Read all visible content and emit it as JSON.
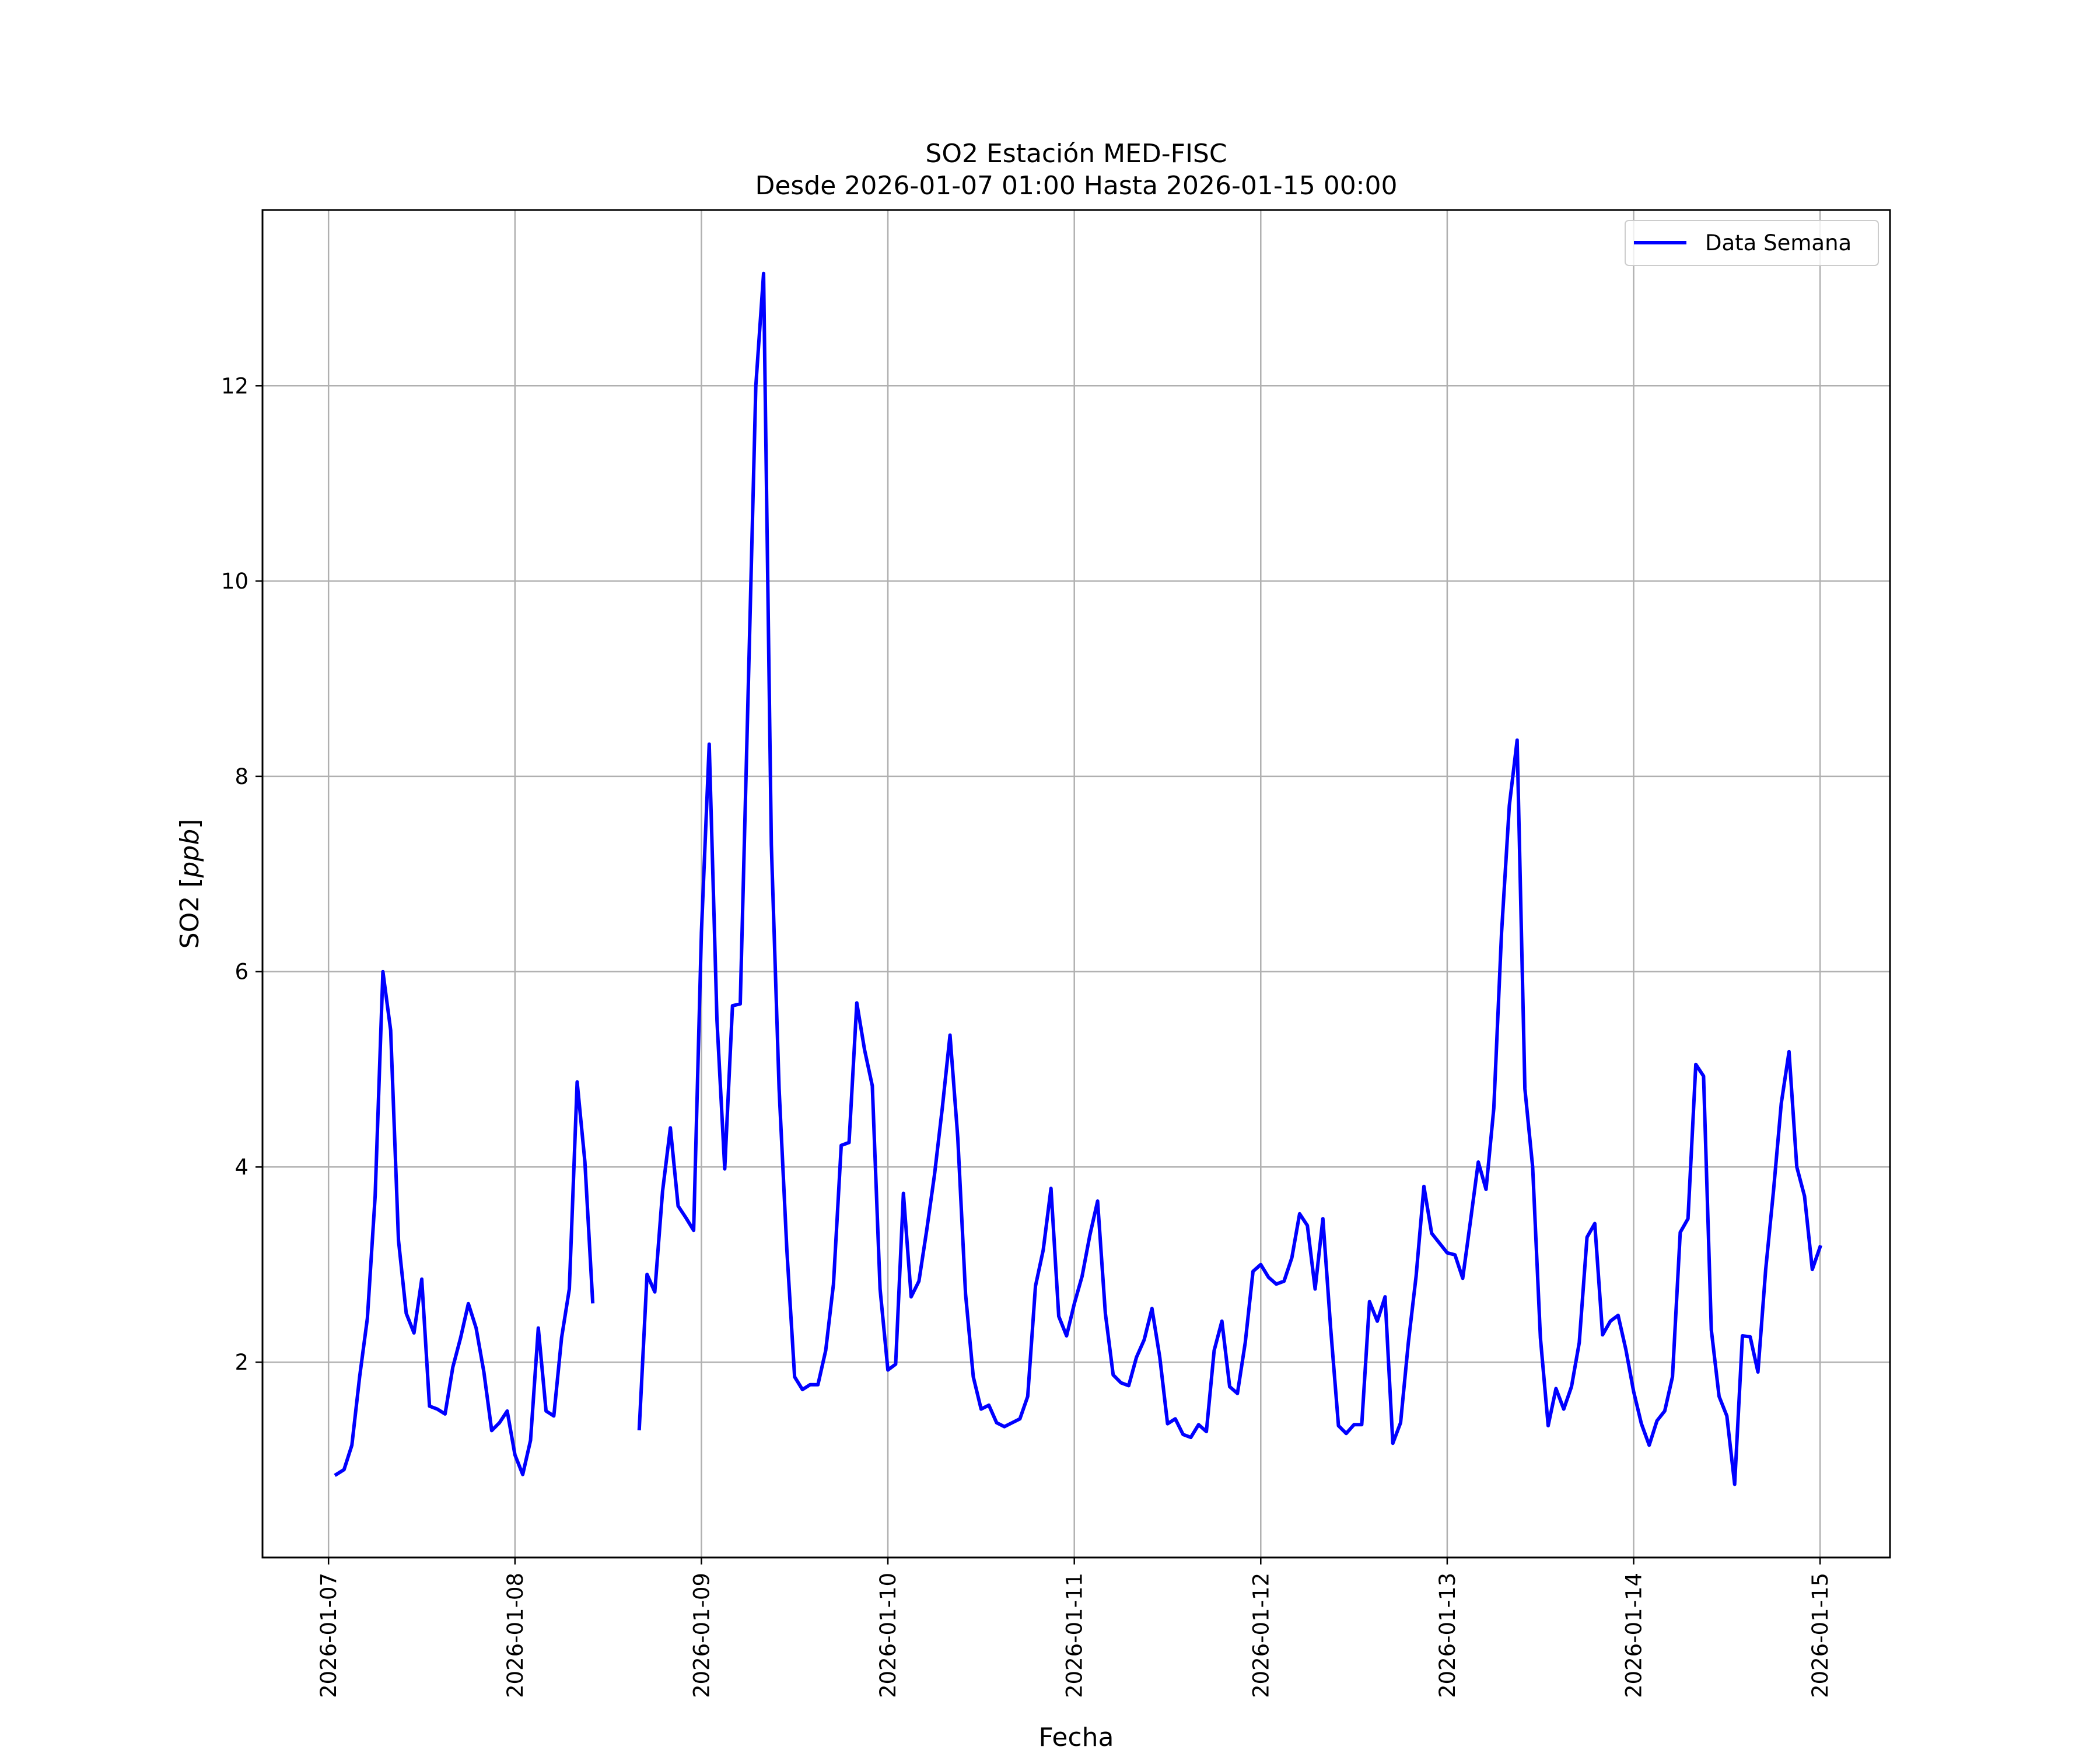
{
  "chart_data": {
    "type": "line",
    "title": "SO2 Estación MED-FISC",
    "subtitle": "Desde 2026-01-07 01:00 Hasta 2026-01-15 00:00",
    "xlabel": "Fecha",
    "ylabel": "SO2 [ppb]",
    "ylabel_main": "SO2 [",
    "ylabel_unit": "ppb",
    "ylabel_close": "]",
    "x_ticks": [
      "2026-01-07",
      "2026-01-08",
      "2026-01-09",
      "2026-01-10",
      "2026-01-11",
      "2026-01-12",
      "2026-01-13",
      "2026-01-14",
      "2026-01-15"
    ],
    "y_ticks": [
      "2",
      "4",
      "6",
      "8",
      "10",
      "12"
    ],
    "xlim": [
      "2026-01-06 15:30",
      "2026-01-15 09:00"
    ],
    "ylim": [
      0.0,
      13.8
    ],
    "grid": true,
    "legend_position": "top-right",
    "colors": {
      "series": "#0000ff",
      "grid": "#b0b0b0"
    },
    "series": [
      {
        "name": "Data Semana",
        "points": [
          [
            "2026-01-07 01:00",
            0.85
          ],
          [
            "2026-01-07 02:00",
            0.9
          ],
          [
            "2026-01-07 03:00",
            1.15
          ],
          [
            "2026-01-07 04:00",
            1.85
          ],
          [
            "2026-01-07 05:00",
            2.45
          ],
          [
            "2026-01-07 06:00",
            3.7
          ],
          [
            "2026-01-07 07:00",
            6.0
          ],
          [
            "2026-01-07 08:00",
            5.4
          ],
          [
            "2026-01-07 09:00",
            3.25
          ],
          [
            "2026-01-07 10:00",
            2.5
          ],
          [
            "2026-01-07 11:00",
            2.3
          ],
          [
            "2026-01-07 12:00",
            2.85
          ],
          [
            "2026-01-07 13:00",
            1.55
          ],
          [
            "2026-01-07 14:00",
            1.52
          ],
          [
            "2026-01-07 15:00",
            1.47
          ],
          [
            "2026-01-07 16:00",
            1.95
          ],
          [
            "2026-01-07 17:00",
            2.25
          ],
          [
            "2026-01-07 18:00",
            2.6
          ],
          [
            "2026-01-07 19:00",
            2.35
          ],
          [
            "2026-01-07 20:00",
            1.9
          ],
          [
            "2026-01-07 21:00",
            1.3
          ],
          [
            "2026-01-07 22:00",
            1.38
          ],
          [
            "2026-01-07 23:00",
            1.5
          ],
          [
            "2026-01-08 00:00",
            1.05
          ],
          [
            "2026-01-08 01:00",
            0.85
          ],
          [
            "2026-01-08 02:00",
            1.2
          ],
          [
            "2026-01-08 03:00",
            2.35
          ],
          [
            "2026-01-08 04:00",
            1.5
          ],
          [
            "2026-01-08 05:00",
            1.45
          ],
          [
            "2026-01-08 06:00",
            2.25
          ],
          [
            "2026-01-08 07:00",
            2.75
          ],
          [
            "2026-01-08 08:00",
            4.87
          ],
          [
            "2026-01-08 09:00",
            4.05
          ],
          [
            "2026-01-08 10:00",
            2.62
          ],
          null,
          null,
          null,
          null,
          null,
          null,
          [
            "2026-01-08 16:00",
            1.32
          ],
          [
            "2026-01-08 17:00",
            2.9
          ],
          [
            "2026-01-08 18:00",
            2.72
          ],
          [
            "2026-01-08 19:00",
            3.75
          ],
          [
            "2026-01-08 20:00",
            4.4
          ],
          [
            "2026-01-08 21:00",
            3.6
          ],
          [
            "2026-01-08 22:00",
            3.48
          ],
          [
            "2026-01-08 23:00",
            3.35
          ],
          [
            "2026-01-09 00:00",
            6.4
          ],
          [
            "2026-01-09 01:00",
            8.33
          ],
          [
            "2026-01-09 02:00",
            5.5
          ],
          [
            "2026-01-09 03:00",
            3.98
          ],
          [
            "2026-01-09 04:00",
            5.65
          ],
          [
            "2026-01-09 05:00",
            5.67
          ],
          [
            "2026-01-09 06:00",
            8.8
          ],
          [
            "2026-01-09 07:00",
            12.0
          ],
          [
            "2026-01-09 08:00",
            13.15
          ],
          [
            "2026-01-09 09:00",
            7.3
          ],
          [
            "2026-01-09 10:00",
            4.8
          ],
          [
            "2026-01-09 11:00",
            3.15
          ],
          [
            "2026-01-09 12:00",
            1.85
          ],
          [
            "2026-01-09 13:00",
            1.72
          ],
          [
            "2026-01-09 14:00",
            1.77
          ],
          [
            "2026-01-09 15:00",
            1.77
          ],
          [
            "2026-01-09 16:00",
            2.12
          ],
          [
            "2026-01-09 17:00",
            2.8
          ],
          [
            "2026-01-09 18:00",
            4.22
          ],
          [
            "2026-01-09 19:00",
            4.25
          ],
          [
            "2026-01-09 20:00",
            5.68
          ],
          [
            "2026-01-09 21:00",
            5.2
          ],
          [
            "2026-01-09 22:00",
            4.83
          ],
          [
            "2026-01-09 23:00",
            2.75
          ],
          [
            "2026-01-10 00:00",
            1.92
          ],
          [
            "2026-01-10 01:00",
            1.98
          ],
          [
            "2026-01-10 02:00",
            3.73
          ],
          [
            "2026-01-10 03:00",
            2.67
          ],
          [
            "2026-01-10 04:00",
            2.83
          ],
          [
            "2026-01-10 05:00",
            3.35
          ],
          [
            "2026-01-10 06:00",
            3.92
          ],
          [
            "2026-01-10 07:00",
            4.6
          ],
          [
            "2026-01-10 08:00",
            5.35
          ],
          [
            "2026-01-10 09:00",
            4.3
          ],
          [
            "2026-01-10 10:00",
            2.7
          ],
          [
            "2026-01-10 11:00",
            1.85
          ],
          [
            "2026-01-10 12:00",
            1.52
          ],
          [
            "2026-01-10 13:00",
            1.56
          ],
          [
            "2026-01-10 14:00",
            1.38
          ],
          [
            "2026-01-10 15:00",
            1.34
          ],
          [
            "2026-01-10 16:00",
            1.38
          ],
          [
            "2026-01-10 17:00",
            1.42
          ],
          [
            "2026-01-10 18:00",
            1.65
          ],
          [
            "2026-01-10 19:00",
            2.78
          ],
          [
            "2026-01-10 20:00",
            3.15
          ],
          [
            "2026-01-10 21:00",
            3.78
          ],
          [
            "2026-01-10 22:00",
            2.47
          ],
          [
            "2026-01-10 23:00",
            2.27
          ],
          [
            "2026-01-11 00:00",
            2.6
          ],
          [
            "2026-01-11 01:00",
            2.88
          ],
          [
            "2026-01-11 02:00",
            3.3
          ],
          [
            "2026-01-11 03:00",
            3.65
          ],
          [
            "2026-01-11 04:00",
            2.5
          ],
          [
            "2026-01-11 05:00",
            1.87
          ],
          [
            "2026-01-11 06:00",
            1.79
          ],
          [
            "2026-01-11 07:00",
            1.76
          ],
          [
            "2026-01-11 08:00",
            2.05
          ],
          [
            "2026-01-11 09:00",
            2.23
          ],
          [
            "2026-01-11 10:00",
            2.55
          ],
          [
            "2026-01-11 11:00",
            2.05
          ],
          [
            "2026-01-11 12:00",
            1.37
          ],
          [
            "2026-01-11 13:00",
            1.42
          ],
          [
            "2026-01-11 14:00",
            1.26
          ],
          [
            "2026-01-11 15:00",
            1.23
          ],
          [
            "2026-01-11 16:00",
            1.36
          ],
          [
            "2026-01-11 17:00",
            1.29
          ],
          [
            "2026-01-11 18:00",
            2.12
          ],
          [
            "2026-01-11 19:00",
            2.42
          ],
          [
            "2026-01-11 20:00",
            1.75
          ],
          [
            "2026-01-11 21:00",
            1.68
          ],
          [
            "2026-01-11 22:00",
            2.2
          ],
          [
            "2026-01-11 23:00",
            2.93
          ],
          [
            "2026-01-12 00:00",
            3.0
          ],
          [
            "2026-01-12 01:00",
            2.87
          ],
          [
            "2026-01-12 02:00",
            2.8
          ],
          [
            "2026-01-12 03:00",
            2.83
          ],
          [
            "2026-01-12 04:00",
            3.07
          ],
          [
            "2026-01-12 05:00",
            3.52
          ],
          [
            "2026-01-12 06:00",
            3.4
          ],
          [
            "2026-01-12 07:00",
            2.75
          ],
          [
            "2026-01-12 08:00",
            3.47
          ],
          [
            "2026-01-12 09:00",
            2.35
          ],
          [
            "2026-01-12 10:00",
            1.35
          ],
          [
            "2026-01-12 11:00",
            1.27
          ],
          [
            "2026-01-12 12:00",
            1.36
          ],
          [
            "2026-01-12 13:00",
            1.36
          ],
          [
            "2026-01-12 14:00",
            2.62
          ],
          [
            "2026-01-12 15:00",
            2.42
          ],
          [
            "2026-01-12 16:00",
            2.67
          ],
          [
            "2026-01-12 17:00",
            1.17
          ],
          [
            "2026-01-12 18:00",
            1.38
          ],
          [
            "2026-01-12 19:00",
            2.2
          ],
          [
            "2026-01-12 20:00",
            2.88
          ],
          [
            "2026-01-12 21:00",
            3.8
          ],
          [
            "2026-01-12 22:00",
            3.32
          ],
          [
            "2026-01-12 23:00",
            3.22
          ],
          [
            "2026-01-13 00:00",
            3.12
          ],
          [
            "2026-01-13 01:00",
            3.1
          ],
          [
            "2026-01-13 02:00",
            2.86
          ],
          [
            "2026-01-13 03:00",
            3.45
          ],
          [
            "2026-01-13 04:00",
            4.05
          ],
          [
            "2026-01-13 05:00",
            3.77
          ],
          [
            "2026-01-13 06:00",
            4.6
          ],
          [
            "2026-01-13 07:00",
            6.4
          ],
          [
            "2026-01-13 08:00",
            7.7
          ],
          [
            "2026-01-13 09:00",
            8.37
          ],
          [
            "2026-01-13 10:00",
            4.8
          ],
          [
            "2026-01-13 11:00",
            4.0
          ],
          [
            "2026-01-13 12:00",
            2.25
          ],
          [
            "2026-01-13 13:00",
            1.35
          ],
          [
            "2026-01-13 14:00",
            1.73
          ],
          [
            "2026-01-13 15:00",
            1.52
          ],
          [
            "2026-01-13 16:00",
            1.75
          ],
          [
            "2026-01-13 17:00",
            2.2
          ],
          [
            "2026-01-13 18:00",
            3.28
          ],
          [
            "2026-01-13 19:00",
            3.42
          ],
          [
            "2026-01-13 20:00",
            2.28
          ],
          [
            "2026-01-13 21:00",
            2.42
          ],
          [
            "2026-01-13 22:00",
            2.48
          ],
          [
            "2026-01-13 23:00",
            2.13
          ],
          [
            "2026-01-14 00:00",
            1.7
          ],
          [
            "2026-01-14 01:00",
            1.37
          ],
          [
            "2026-01-14 02:00",
            1.15
          ],
          [
            "2026-01-14 03:00",
            1.4
          ],
          [
            "2026-01-14 04:00",
            1.5
          ],
          [
            "2026-01-14 05:00",
            1.85
          ],
          [
            "2026-01-14 06:00",
            3.33
          ],
          [
            "2026-01-14 07:00",
            3.47
          ],
          [
            "2026-01-14 08:00",
            5.05
          ],
          [
            "2026-01-14 09:00",
            4.93
          ],
          [
            "2026-01-14 10:00",
            2.33
          ],
          [
            "2026-01-14 11:00",
            1.65
          ],
          [
            "2026-01-14 12:00",
            1.45
          ],
          [
            "2026-01-14 13:00",
            0.75
          ],
          [
            "2026-01-14 14:00",
            2.27
          ],
          [
            "2026-01-14 15:00",
            2.26
          ],
          [
            "2026-01-14 16:00",
            1.9
          ],
          [
            "2026-01-14 17:00",
            2.95
          ],
          [
            "2026-01-14 18:00",
            3.75
          ],
          [
            "2026-01-14 19:00",
            4.65
          ],
          [
            "2026-01-14 20:00",
            5.18
          ],
          [
            "2026-01-14 21:00",
            4.0
          ],
          [
            "2026-01-14 22:00",
            3.7
          ],
          [
            "2026-01-14 23:00",
            2.95
          ],
          [
            "2026-01-15 00:00",
            3.18
          ]
        ]
      }
    ]
  }
}
